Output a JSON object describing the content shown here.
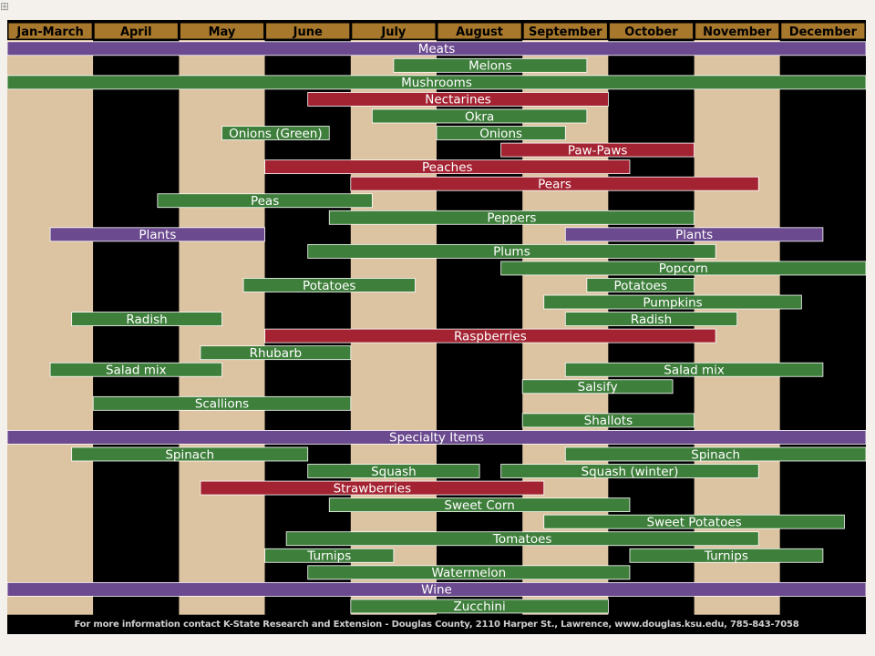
{
  "chart_data": {
    "type": "gantt",
    "months": [
      "Jan-March",
      "April",
      "May",
      "June",
      "July",
      "August",
      "September",
      "October",
      "November",
      "December"
    ],
    "colors": {
      "header": "#a8782c",
      "band_light": "#dcc3a1",
      "band_dark": "#000000",
      "purple": "#6b4a8f",
      "green": "#3f7f3c",
      "red": "#a42332",
      "text": "#ffffff"
    },
    "rows": [
      {
        "bars": [
          {
            "label": "Meats",
            "start": 0,
            "end": 10,
            "color": "purple"
          }
        ]
      },
      {
        "bars": [
          {
            "label": "Melons",
            "start": 4.5,
            "end": 6.75,
            "color": "green"
          }
        ]
      },
      {
        "bars": [
          {
            "label": "Mushrooms",
            "start": 0,
            "end": 10,
            "color": "green"
          }
        ]
      },
      {
        "bars": [
          {
            "label": "Nectarines",
            "start": 3.5,
            "end": 7,
            "color": "red"
          }
        ]
      },
      {
        "bars": [
          {
            "label": "Okra",
            "start": 4.25,
            "end": 6.75,
            "color": "green"
          }
        ]
      },
      {
        "bars": [
          {
            "label": "Onions (Green)",
            "start": 2.5,
            "end": 3.75,
            "color": "green"
          },
          {
            "label": "Onions",
            "start": 5,
            "end": 6.5,
            "color": "green"
          }
        ]
      },
      {
        "bars": [
          {
            "label": "Paw-Paws",
            "start": 5.75,
            "end": 8,
            "color": "red"
          }
        ]
      },
      {
        "bars": [
          {
            "label": "Peaches",
            "start": 3,
            "end": 7.25,
            "color": "red"
          }
        ]
      },
      {
        "bars": [
          {
            "label": "Pears",
            "start": 4,
            "end": 8.75,
            "color": "red"
          }
        ]
      },
      {
        "bars": [
          {
            "label": "Peas",
            "start": 1.75,
            "end": 4.25,
            "color": "green"
          }
        ]
      },
      {
        "bars": [
          {
            "label": "Peppers",
            "start": 3.75,
            "end": 8,
            "color": "green"
          }
        ]
      },
      {
        "bars": [
          {
            "label": "Plants",
            "start": 0.5,
            "end": 3,
            "color": "purple"
          },
          {
            "label": "Plants",
            "start": 6.5,
            "end": 9.5,
            "color": "purple"
          }
        ]
      },
      {
        "bars": [
          {
            "label": "Plums",
            "start": 3.5,
            "end": 8.25,
            "color": "green"
          }
        ]
      },
      {
        "bars": [
          {
            "label": "Popcorn",
            "start": 5.75,
            "end": 10,
            "color": "green"
          }
        ]
      },
      {
        "bars": [
          {
            "label": "Potatoes",
            "start": 2.75,
            "end": 4.75,
            "color": "green"
          },
          {
            "label": "Potatoes",
            "start": 6.75,
            "end": 8,
            "color": "green"
          }
        ]
      },
      {
        "bars": [
          {
            "label": "Pumpkins",
            "start": 6.25,
            "end": 9.25,
            "color": "green"
          }
        ]
      },
      {
        "bars": [
          {
            "label": "Radish",
            "start": 0.75,
            "end": 2.5,
            "color": "green"
          },
          {
            "label": "Radish",
            "start": 6.5,
            "end": 8.5,
            "color": "green"
          }
        ]
      },
      {
        "bars": [
          {
            "label": "Raspberries",
            "start": 3,
            "end": 8.25,
            "color": "red"
          }
        ]
      },
      {
        "bars": [
          {
            "label": "Rhubarb",
            "start": 2.25,
            "end": 4,
            "color": "green"
          }
        ]
      },
      {
        "bars": [
          {
            "label": "Salad mix",
            "start": 0.5,
            "end": 2.5,
            "color": "green"
          },
          {
            "label": "Salad mix",
            "start": 6.5,
            "end": 9.5,
            "color": "green"
          }
        ]
      },
      {
        "bars": [
          {
            "label": "Salsify",
            "start": 6,
            "end": 7.75,
            "color": "green"
          }
        ]
      },
      {
        "bars": [
          {
            "label": "Scallions",
            "start": 1,
            "end": 4,
            "color": "green"
          }
        ]
      },
      {
        "bars": [
          {
            "label": "Shallots",
            "start": 6,
            "end": 8,
            "color": "green"
          }
        ]
      },
      {
        "bars": [
          {
            "label": "Specialty Items",
            "start": 0,
            "end": 10,
            "color": "purple"
          }
        ]
      },
      {
        "bars": [
          {
            "label": "Spinach",
            "start": 0.75,
            "end": 3.5,
            "color": "green"
          },
          {
            "label": "Spinach",
            "start": 6.5,
            "end": 10,
            "color": "green"
          }
        ]
      },
      {
        "bars": [
          {
            "label": "Squash",
            "start": 3.5,
            "end": 5.5,
            "color": "green"
          },
          {
            "label": "Squash (winter)",
            "start": 5.75,
            "end": 8.75,
            "color": "green"
          }
        ]
      },
      {
        "bars": [
          {
            "label": "Strawberries",
            "start": 2.25,
            "end": 6.25,
            "color": "red"
          }
        ]
      },
      {
        "bars": [
          {
            "label": "Sweet Corn",
            "start": 3.75,
            "end": 7.25,
            "color": "green"
          }
        ]
      },
      {
        "bars": [
          {
            "label": "Sweet Potatoes",
            "start": 6.25,
            "end": 9.75,
            "color": "green"
          }
        ]
      },
      {
        "bars": [
          {
            "label": "Tomatoes",
            "start": 3.25,
            "end": 8.75,
            "color": "green"
          }
        ]
      },
      {
        "bars": [
          {
            "label": "Turnips",
            "start": 3,
            "end": 4.5,
            "color": "green"
          },
          {
            "label": "Turnips",
            "start": 7.25,
            "end": 9.5,
            "color": "green"
          }
        ]
      },
      {
        "bars": [
          {
            "label": "Watermelon",
            "start": 3.5,
            "end": 7.25,
            "color": "green"
          }
        ]
      },
      {
        "bars": [
          {
            "label": "Wine",
            "start": 0,
            "end": 10,
            "color": "purple"
          }
        ]
      },
      {
        "bars": [
          {
            "label": "Zucchini",
            "start": 4,
            "end": 7,
            "color": "green"
          }
        ]
      }
    ]
  },
  "footer": "For more information contact K-State Research and Extension - Douglas County, 2110 Harper St., Lawrence, www.douglas.ksu.edu, 785-843-7058"
}
